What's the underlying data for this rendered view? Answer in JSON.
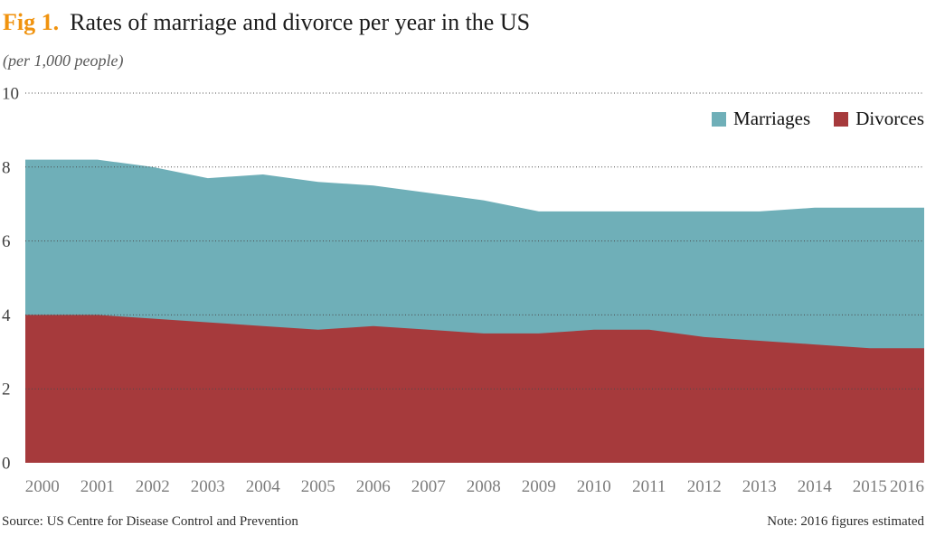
{
  "header": {
    "fig_label": "Fig 1.",
    "title": "Rates of marriage and divorce per year in the US",
    "subtitle": "(per 1,000 people)"
  },
  "legend": [
    {
      "label": "Marriages",
      "color": "#6fafb8"
    },
    {
      "label": "Divorces",
      "color": "#a63a3c"
    }
  ],
  "footer": {
    "source": "Source: US Centre for Disease Control and Prevention",
    "note": "Note: 2016 figures estimated"
  },
  "colors": {
    "accent_orange": "#f0930f",
    "marriages_fill": "#6fafb8",
    "divorces_fill": "#a63a3c",
    "gridline": "#4a4a4a",
    "y_tick_text": "#3f3f3f",
    "x_tick_text": "#7d7d7d"
  },
  "chart_data": {
    "type": "area",
    "title": "Rates of marriage and divorce per year in the US",
    "subtitle": "(per 1,000 people)",
    "xlabel": "",
    "ylabel": "per 1,000 people",
    "x": [
      2000,
      2001,
      2002,
      2003,
      2004,
      2005,
      2006,
      2007,
      2008,
      2009,
      2010,
      2011,
      2012,
      2013,
      2014,
      2015,
      2016
    ],
    "series": [
      {
        "name": "Marriages",
        "color": "#6fafb8",
        "values": [
          8.2,
          8.2,
          8.0,
          7.7,
          7.8,
          7.6,
          7.5,
          7.3,
          7.1,
          6.8,
          6.8,
          6.8,
          6.8,
          6.8,
          6.9,
          6.9,
          6.9
        ]
      },
      {
        "name": "Divorces",
        "color": "#a63a3c",
        "values": [
          4.0,
          4.0,
          3.9,
          3.8,
          3.7,
          3.6,
          3.7,
          3.6,
          3.5,
          3.5,
          3.6,
          3.6,
          3.4,
          3.3,
          3.2,
          3.1,
          3.1
        ]
      }
    ],
    "ylim": [
      0,
      10
    ],
    "yticks": [
      0,
      2,
      4,
      6,
      8,
      10
    ],
    "grid": "horizontal dotted lines drawn over areas",
    "baseline": 0,
    "overlap": "layered areas, both from 0; Divorces drawn in front of Marriages",
    "legend_position": "top-right inside plot"
  }
}
